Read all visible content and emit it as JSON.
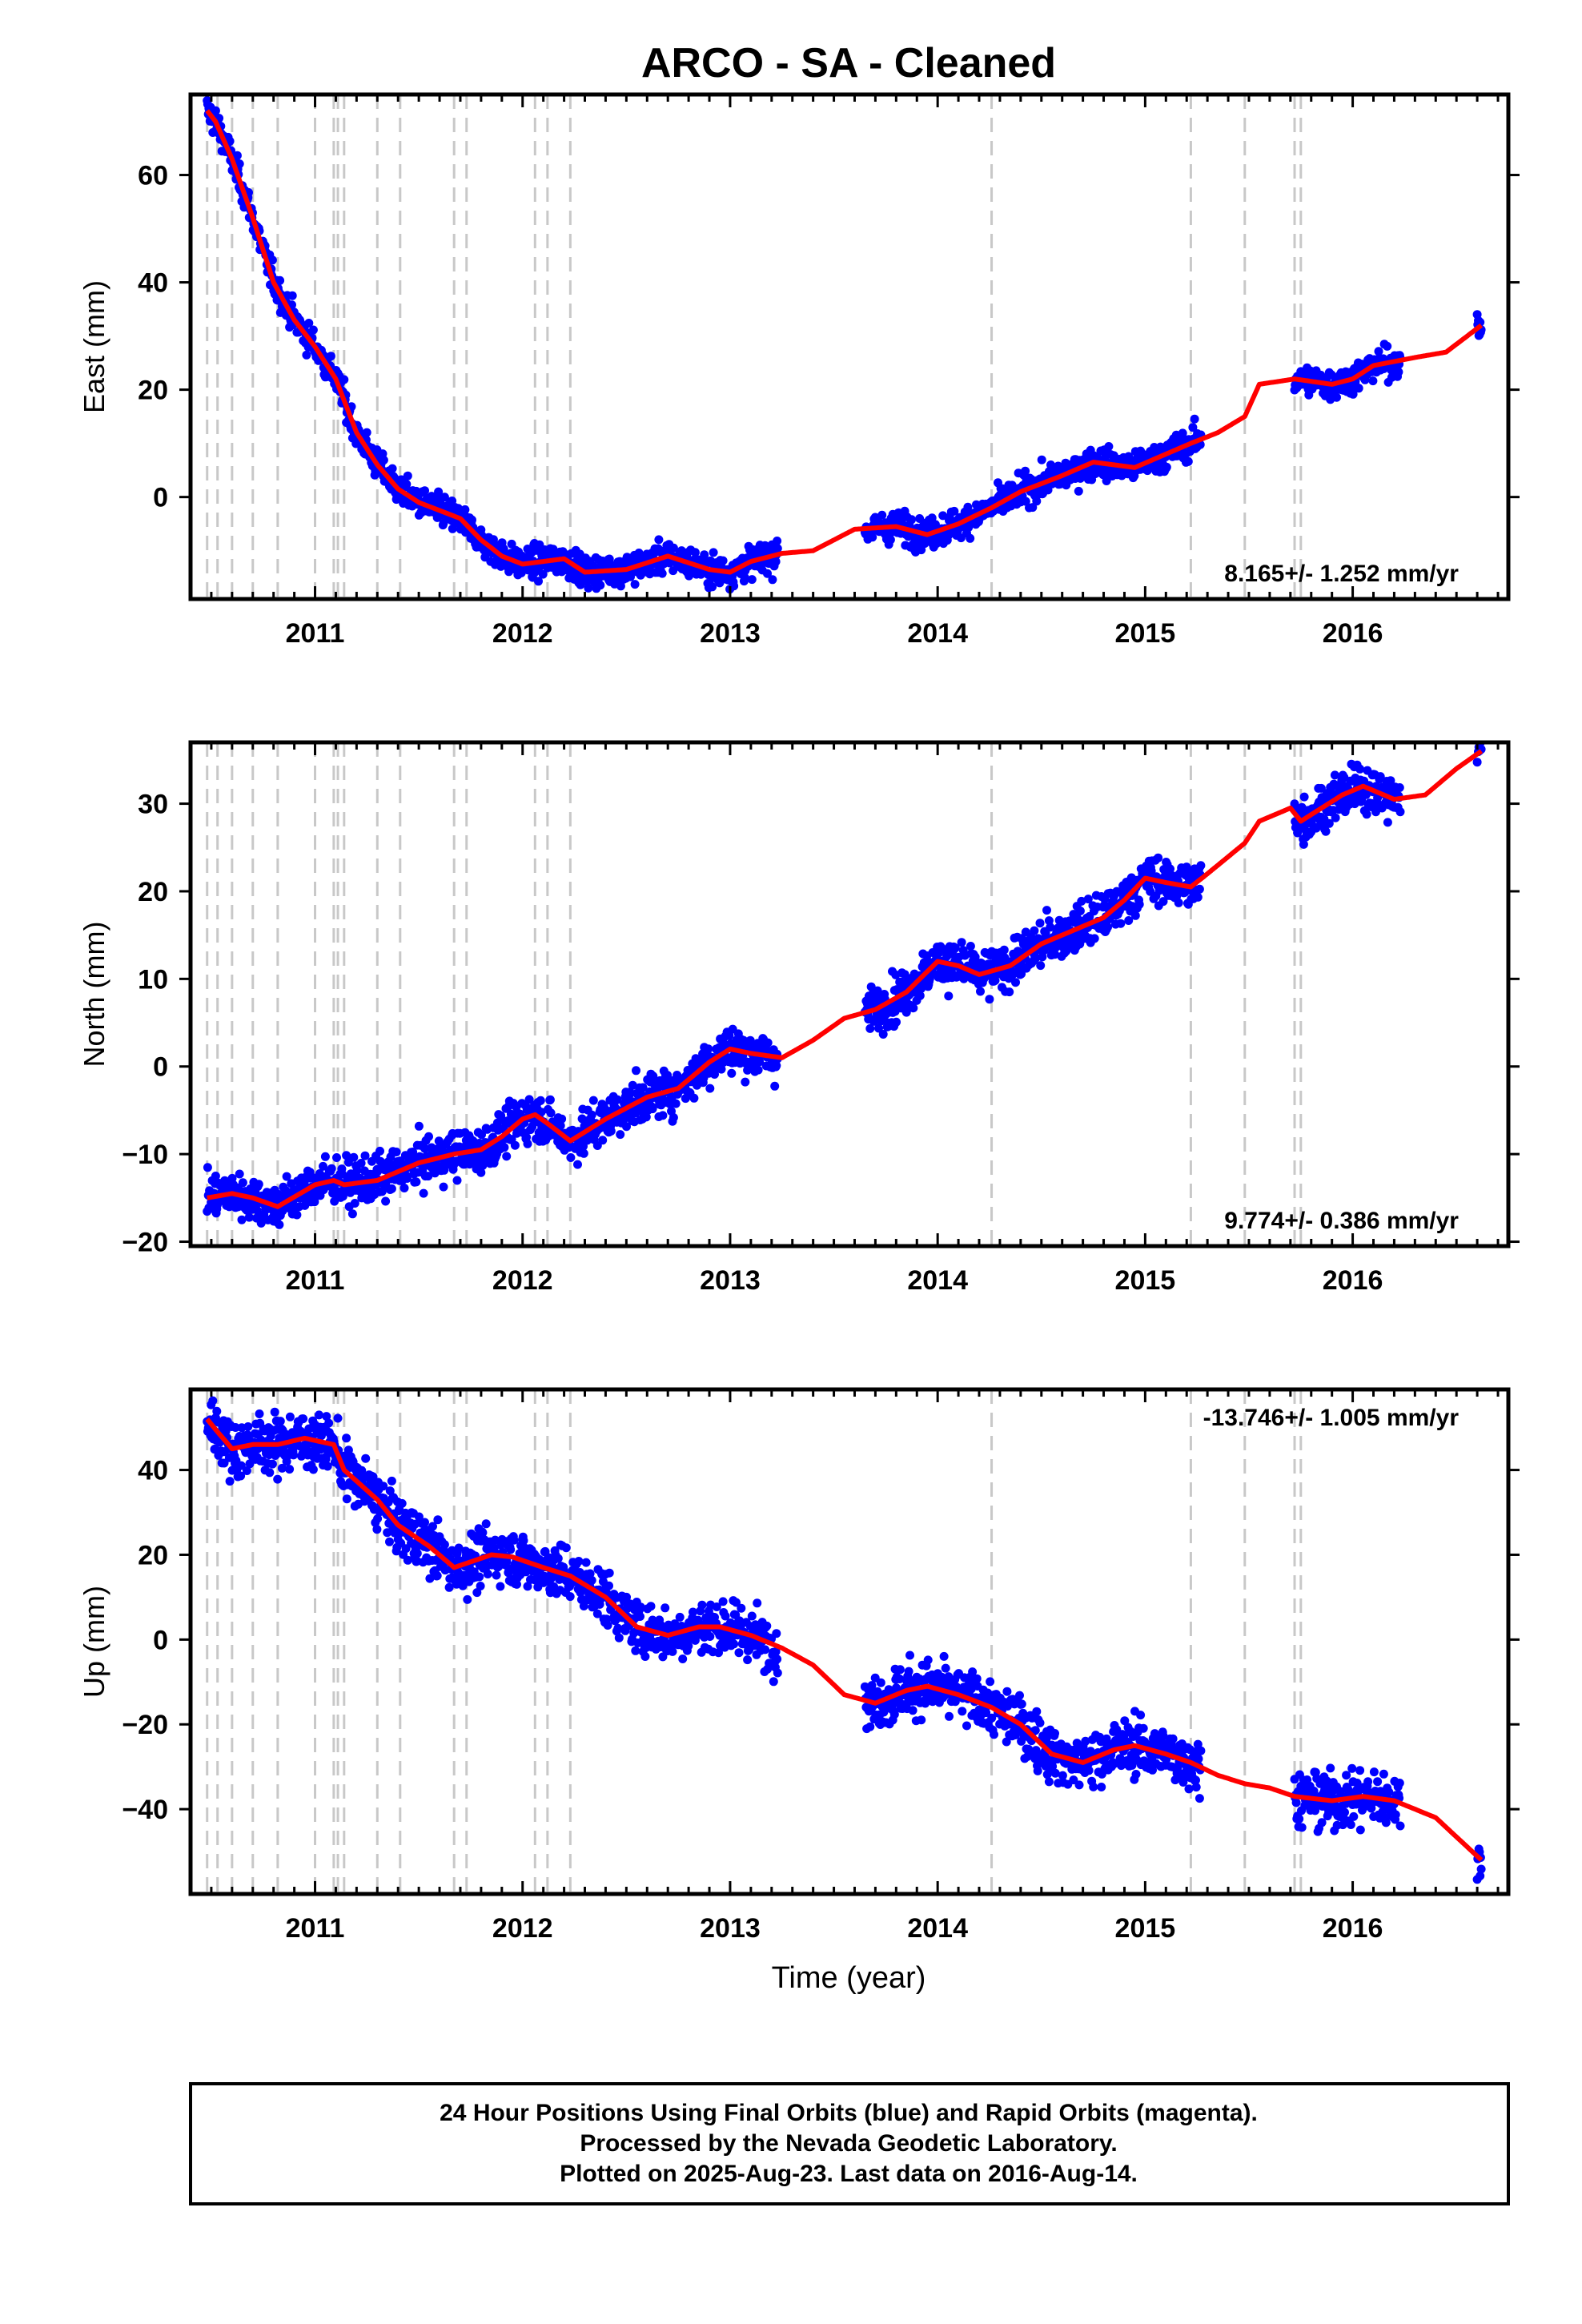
{
  "title": "ARCO  - SA - Cleaned",
  "xlabel": "Time (year)",
  "colors": {
    "final_orbits": "#0000ff",
    "model": "#ff0000",
    "events": "#c8c8c8",
    "frame": "#000000"
  },
  "chart_data": [
    {
      "type": "scatter",
      "component": "East",
      "ylabel": "East (mm)",
      "rate_label": "8.165+/- 1.252 mm/yr",
      "xlim": [
        2010.4,
        2016.75
      ],
      "ylim": [
        -19,
        75
      ],
      "x_ticks": [
        2011,
        2012,
        2013,
        2014,
        2015,
        2016
      ],
      "y_ticks": [
        0,
        20,
        40,
        60
      ],
      "event_lines": [
        2010.48,
        2010.53,
        2010.6,
        2010.7,
        2010.82,
        2011.0,
        2011.09,
        2011.11,
        2011.14,
        2011.3,
        2011.41,
        2011.67,
        2011.73,
        2012.06,
        2012.12,
        2012.23,
        2014.26,
        2015.22,
        2015.48,
        2015.72,
        2015.75
      ],
      "series": [
        {
          "name": "24 Hour Positions Using Final Orbits (blue)",
          "style": "points",
          "x_ranges": [
            [
              2010.48,
              2013.23
            ],
            [
              2013.65,
              2015.27
            ],
            [
              2015.72,
              2016.23
            ],
            [
              2016.6,
              2016.62
            ]
          ]
        },
        {
          "style": "line",
          "steps": [
            [
              2010.52,
              -2
            ],
            [
              2010.7,
              -1.5
            ],
            [
              2010.82,
              -2.5
            ],
            [
              2011.0,
              -3
            ],
            [
              2011.09,
              -2
            ],
            [
              2011.14,
              -4
            ],
            [
              2011.67,
              -1.5
            ],
            [
              2012.12,
              1
            ],
            [
              2012.23,
              -3
            ],
            [
              2014.26,
              4.5
            ],
            [
              2015.22,
              1.5
            ],
            [
              2015.48,
              4
            ],
            [
              2015.72,
              -3
            ]
          ]
        }
      ],
      "trend_points": [
        [
          2010.48,
          72
        ],
        [
          2010.52,
          70
        ],
        [
          2010.6,
          63
        ],
        [
          2010.7,
          52
        ],
        [
          2010.8,
          40
        ],
        [
          2010.9,
          33
        ],
        [
          2011.0,
          28
        ],
        [
          2011.1,
          22
        ],
        [
          2011.2,
          12
        ],
        [
          2011.3,
          6
        ],
        [
          2011.4,
          1.5
        ],
        [
          2011.5,
          -1
        ],
        [
          2011.6,
          -2.5
        ],
        [
          2011.7,
          -4
        ],
        [
          2011.8,
          -8
        ],
        [
          2011.9,
          -11
        ],
        [
          2012.0,
          -12.5
        ],
        [
          2012.1,
          -12
        ],
        [
          2012.2,
          -11.5
        ],
        [
          2012.3,
          -14
        ],
        [
          2012.5,
          -13.5
        ],
        [
          2012.7,
          -11
        ],
        [
          2012.9,
          -13.5
        ],
        [
          2013.0,
          -14
        ],
        [
          2013.1,
          -12
        ],
        [
          2013.25,
          -10.5
        ],
        [
          2013.4,
          -10
        ],
        [
          2013.6,
          -6
        ],
        [
          2013.8,
          -5.5
        ],
        [
          2013.95,
          -7
        ],
        [
          2014.1,
          -5
        ],
        [
          2014.26,
          -2
        ],
        [
          2014.4,
          1
        ],
        [
          2014.6,
          4
        ],
        [
          2014.75,
          6.5
        ],
        [
          2014.95,
          5.5
        ],
        [
          2015.1,
          8
        ],
        [
          2015.22,
          10
        ],
        [
          2015.35,
          12
        ],
        [
          2015.48,
          15
        ],
        [
          2015.55,
          21
        ],
        [
          2015.72,
          22
        ],
        [
          2015.9,
          21
        ],
        [
          2016.0,
          22
        ],
        [
          2016.1,
          24.5
        ],
        [
          2016.3,
          26
        ],
        [
          2016.45,
          27
        ],
        [
          2016.62,
          32
        ]
      ],
      "scatter_sd": 1.4
    },
    {
      "type": "scatter",
      "component": "North",
      "ylabel": "North (mm)",
      "rate_label": "9.774+/- 0.386 mm/yr",
      "xlim": [
        2010.4,
        2016.75
      ],
      "ylim": [
        -20.5,
        37
      ],
      "x_ticks": [
        2011,
        2012,
        2013,
        2014,
        2015,
        2016
      ],
      "y_ticks": [
        -20,
        -10,
        0,
        10,
        20,
        30
      ],
      "event_lines": [
        2010.48,
        2010.53,
        2010.6,
        2010.7,
        2010.82,
        2011.0,
        2011.09,
        2011.11,
        2011.14,
        2011.3,
        2011.41,
        2011.67,
        2011.73,
        2012.06,
        2012.12,
        2012.23,
        2014.26,
        2015.22,
        2015.48,
        2015.72,
        2015.75
      ],
      "series": [
        {
          "name": "24 Hour Positions Using Final Orbits (blue)",
          "style": "points",
          "x_ranges": [
            [
              2010.48,
              2013.23
            ],
            [
              2013.65,
              2015.27
            ],
            [
              2015.72,
              2016.23
            ],
            [
              2016.6,
              2016.62
            ]
          ]
        },
        {
          "style": "line",
          "steps": [
            [
              2010.53,
              -1.5
            ],
            [
              2010.7,
              1
            ],
            [
              2010.82,
              -2.5
            ],
            [
              2011.09,
              2.5
            ],
            [
              2011.14,
              -2
            ],
            [
              2011.67,
              1.5
            ],
            [
              2011.73,
              -1.5
            ],
            [
              2012.06,
              2
            ],
            [
              2012.12,
              -2
            ],
            [
              2012.23,
              -3
            ],
            [
              2015.48,
              2.5
            ],
            [
              2015.72,
              -3
            ]
          ]
        }
      ],
      "trend_points": [
        [
          2010.48,
          -15
        ],
        [
          2010.6,
          -14.5
        ],
        [
          2010.7,
          -15
        ],
        [
          2010.82,
          -16
        ],
        [
          2011.0,
          -13.5
        ],
        [
          2011.09,
          -13
        ],
        [
          2011.14,
          -13.5
        ],
        [
          2011.3,
          -13
        ],
        [
          2011.4,
          -12
        ],
        [
          2011.5,
          -11
        ],
        [
          2011.67,
          -10
        ],
        [
          2011.8,
          -9.5
        ],
        [
          2011.9,
          -8
        ],
        [
          2012.0,
          -6
        ],
        [
          2012.06,
          -5.5
        ],
        [
          2012.12,
          -6.5
        ],
        [
          2012.23,
          -8.5
        ],
        [
          2012.4,
          -6
        ],
        [
          2012.6,
          -3.5
        ],
        [
          2012.75,
          -2.5
        ],
        [
          2012.9,
          0.5
        ],
        [
          2013.0,
          2
        ],
        [
          2013.1,
          1.5
        ],
        [
          2013.25,
          1
        ],
        [
          2013.4,
          3
        ],
        [
          2013.55,
          5.5
        ],
        [
          2013.7,
          6.5
        ],
        [
          2013.85,
          8.5
        ],
        [
          2014.0,
          12
        ],
        [
          2014.1,
          11.5
        ],
        [
          2014.2,
          10.5
        ],
        [
          2014.35,
          11.5
        ],
        [
          2014.5,
          14
        ],
        [
          2014.65,
          15.5
        ],
        [
          2014.8,
          17
        ],
        [
          2014.9,
          19
        ],
        [
          2015.0,
          21.5
        ],
        [
          2015.1,
          21
        ],
        [
          2015.22,
          20.5
        ],
        [
          2015.3,
          22
        ],
        [
          2015.48,
          25.5
        ],
        [
          2015.55,
          28
        ],
        [
          2015.7,
          29.5
        ],
        [
          2015.75,
          28
        ],
        [
          2015.85,
          29.5
        ],
        [
          2015.95,
          31
        ],
        [
          2016.05,
          32
        ],
        [
          2016.2,
          30.5
        ],
        [
          2016.35,
          31
        ],
        [
          2016.5,
          34
        ],
        [
          2016.62,
          36
        ]
      ],
      "scatter_sd": 1.3
    },
    {
      "type": "scatter",
      "component": "Up",
      "ylabel": "Up (mm)",
      "rate_label": "-13.746+/- 1.005 mm/yr",
      "xlim": [
        2010.4,
        2016.75
      ],
      "ylim": [
        -60,
        59
      ],
      "x_ticks": [
        2011,
        2012,
        2013,
        2014,
        2015,
        2016
      ],
      "y_ticks": [
        -40,
        -20,
        0,
        20,
        40
      ],
      "event_lines": [
        2010.48,
        2010.53,
        2010.6,
        2010.7,
        2010.82,
        2011.0,
        2011.09,
        2011.11,
        2011.14,
        2011.3,
        2011.41,
        2011.67,
        2011.73,
        2012.06,
        2012.12,
        2012.23,
        2014.26,
        2015.22,
        2015.48,
        2015.72,
        2015.75
      ],
      "series": [
        {
          "name": "24 Hour Positions Using Final Orbits (blue)",
          "style": "points",
          "x_ranges": [
            [
              2010.48,
              2013.23
            ],
            [
              2013.65,
              2015.27
            ],
            [
              2015.72,
              2016.23
            ],
            [
              2016.6,
              2016.62
            ]
          ]
        },
        {
          "style": "line",
          "steps": [
            [
              2010.53,
              -6
            ],
            [
              2010.6,
              4
            ],
            [
              2010.7,
              -5
            ],
            [
              2011.14,
              -4
            ],
            [
              2011.67,
              -3
            ],
            [
              2011.73,
              3
            ],
            [
              2015.22,
              3
            ],
            [
              2015.48,
              -2
            ],
            [
              2015.72,
              -6
            ]
          ]
        }
      ],
      "trend_points": [
        [
          2010.48,
          52
        ],
        [
          2010.53,
          49
        ],
        [
          2010.6,
          45
        ],
        [
          2010.7,
          46
        ],
        [
          2010.82,
          46
        ],
        [
          2010.95,
          47.5
        ],
        [
          2011.09,
          46
        ],
        [
          2011.14,
          40
        ],
        [
          2011.3,
          33
        ],
        [
          2011.4,
          27
        ],
        [
          2011.55,
          22
        ],
        [
          2011.67,
          17
        ],
        [
          2011.73,
          18
        ],
        [
          2011.85,
          20
        ],
        [
          2011.95,
          19.5
        ],
        [
          2012.1,
          17
        ],
        [
          2012.23,
          15
        ],
        [
          2012.4,
          10
        ],
        [
          2012.55,
          3
        ],
        [
          2012.7,
          1
        ],
        [
          2012.85,
          3
        ],
        [
          2012.95,
          3
        ],
        [
          2013.1,
          1
        ],
        [
          2013.25,
          -2
        ],
        [
          2013.4,
          -6
        ],
        [
          2013.55,
          -13
        ],
        [
          2013.7,
          -15
        ],
        [
          2013.85,
          -12
        ],
        [
          2013.95,
          -11
        ],
        [
          2014.1,
          -13
        ],
        [
          2014.26,
          -16
        ],
        [
          2014.4,
          -20
        ],
        [
          2014.55,
          -27
        ],
        [
          2014.7,
          -29
        ],
        [
          2014.85,
          -26
        ],
        [
          2014.95,
          -25
        ],
        [
          2015.1,
          -27
        ],
        [
          2015.22,
          -29
        ],
        [
          2015.35,
          -32
        ],
        [
          2015.48,
          -34
        ],
        [
          2015.6,
          -35
        ],
        [
          2015.72,
          -37
        ],
        [
          2015.9,
          -38
        ],
        [
          2016.05,
          -37
        ],
        [
          2016.2,
          -38
        ],
        [
          2016.4,
          -42
        ],
        [
          2016.62,
          -52
        ]
      ],
      "scatter_sd": 3.2
    }
  ],
  "footer": {
    "line1": "24 Hour Positions Using Final Orbits (blue) and Rapid Orbits (magenta).",
    "line2": "Processed by the Nevada Geodetic Laboratory.",
    "line3": "Plotted on 2025-Aug-23. Last data on 2016-Aug-14."
  }
}
